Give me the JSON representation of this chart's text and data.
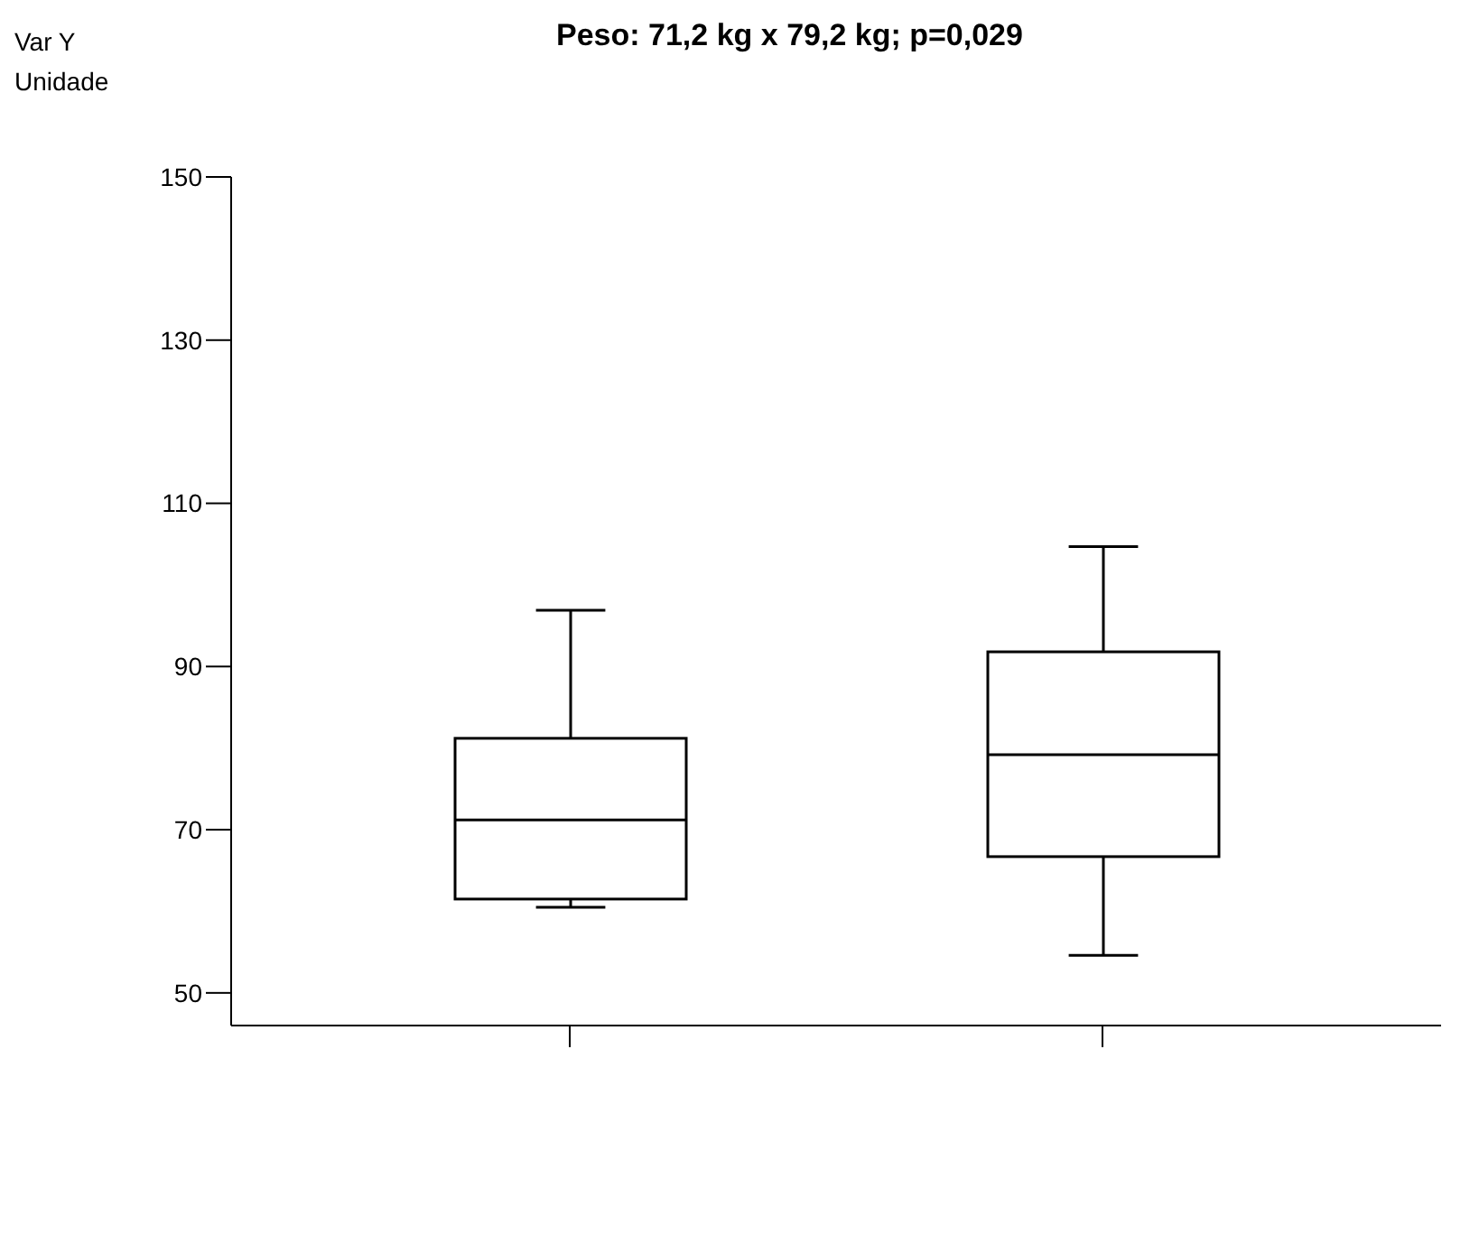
{
  "chart_data": {
    "type": "box",
    "title": "Peso: 71,2 kg x 79,2 kg; p=0,029",
    "ylabel": "Var Y\nUnidade",
    "categories": [
      null,
      null
    ],
    "boxes": [
      {
        "low": 60.5,
        "q1": 61.5,
        "median": 71.2,
        "q3": 81.2,
        "high": 96.9
      },
      {
        "low": 54.6,
        "q1": 66.7,
        "median": 79.2,
        "q3": 91.8,
        "high": 104.7
      }
    ],
    "color": "#000000",
    "ylim": [
      46,
      150
    ],
    "yticks": [
      50,
      70,
      90,
      110,
      130,
      150
    ],
    "grid": false
  }
}
